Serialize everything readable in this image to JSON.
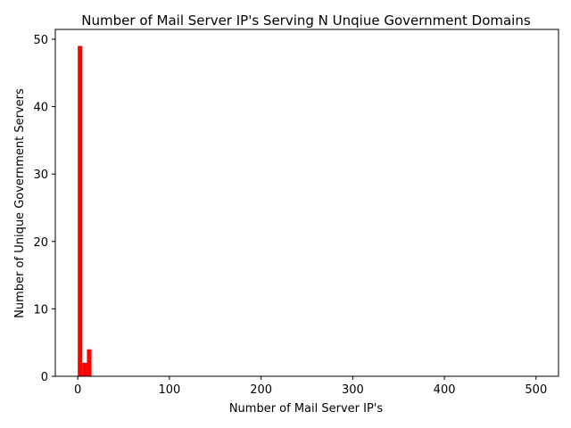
{
  "chart_data": {
    "type": "bar",
    "title": "Number of Mail Server IP's Serving N Unqiue Government Domains",
    "xlabel": "Number of Mail Server IP's",
    "ylabel": "Number of Unique Government Servers",
    "xlim": [
      -24.5,
      524.5
    ],
    "ylim": [
      0,
      51.45
    ],
    "xticks": [
      0,
      100,
      200,
      300,
      400,
      500
    ],
    "yticks": [
      0,
      10,
      20,
      30,
      40,
      50
    ],
    "grid": false,
    "bar_color": "#ff0000",
    "bins": [
      {
        "x0": 0,
        "x1": 5,
        "value": 49
      },
      {
        "x0": 5,
        "x1": 10,
        "value": 2
      },
      {
        "x0": 10,
        "x1": 15,
        "value": 4
      }
    ]
  }
}
